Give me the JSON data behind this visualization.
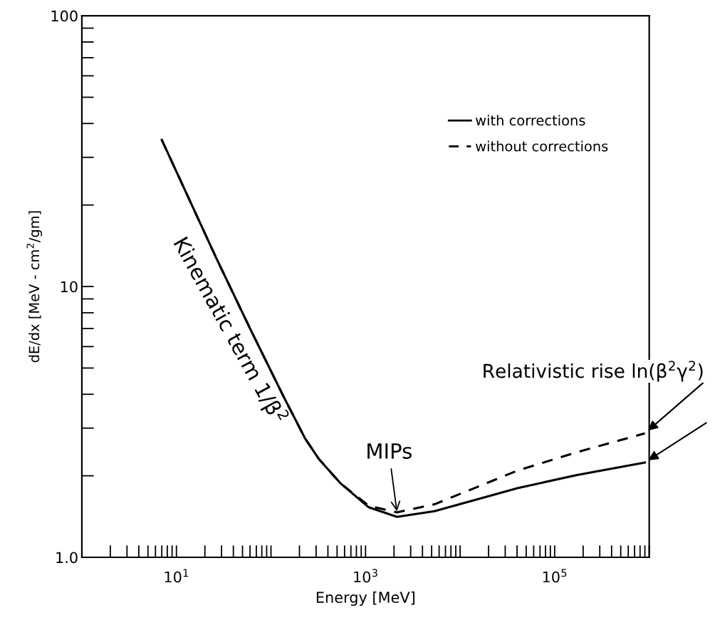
{
  "chart_data": {
    "type": "line",
    "xlabel": "Energy [MeV]",
    "ylabel": "dE/dx [MeV - cm$^{2}$/gm]",
    "log": "xy",
    "xlim": [
      1,
      1000000
    ],
    "ylim": [
      1,
      100
    ],
    "xticks": [
      {
        "value": 10,
        "label": "10$^{1}$"
      },
      {
        "value": 1000,
        "label": "10$^{3}$"
      },
      {
        "value": 100000,
        "label": "10$^{5}$"
      }
    ],
    "yticks": [
      {
        "value": 1,
        "label": "1.0"
      },
      10,
      100
    ],
    "grid": false,
    "legend": "top right",
    "series": [
      {
        "name": "with corrections",
        "color": "#000000",
        "line_style": "solid",
        "x": [
          7.0,
          26.5,
          60,
          134,
          229,
          323,
          540,
          1080,
          2150,
          5370,
          40400,
          169000,
          900000
        ],
        "values": [
          34.8,
          12.7,
          7.0,
          3.96,
          2.75,
          2.3,
          1.88,
          1.53,
          1.41,
          1.48,
          1.8,
          2.01,
          2.24
        ]
      },
      {
        "name": "without corrections",
        "color": "#000000",
        "line_style": "dashed",
        "x": [
          7.0,
          26.5,
          60,
          134,
          229,
          323,
          540,
          1080,
          2150,
          5370,
          40400,
          169000,
          900000
        ],
        "values": [
          34.8,
          12.7,
          7.0,
          3.96,
          2.75,
          2.3,
          1.88,
          1.55,
          1.465,
          1.57,
          2.09,
          2.44,
          2.87
        ]
      }
    ],
    "annotations": [
      {
        "text": "Kinematic term 1/β$^{2}$",
        "x": 26.5,
        "y": 12.7
      },
      {
        "text": "MIPs",
        "x": 2150,
        "y": 1.465
      },
      {
        "text": "Relativistic rise ln(β$^{2}$γ$^{2}$)",
        "x": 900000,
        "y": 2.87
      }
    ]
  }
}
